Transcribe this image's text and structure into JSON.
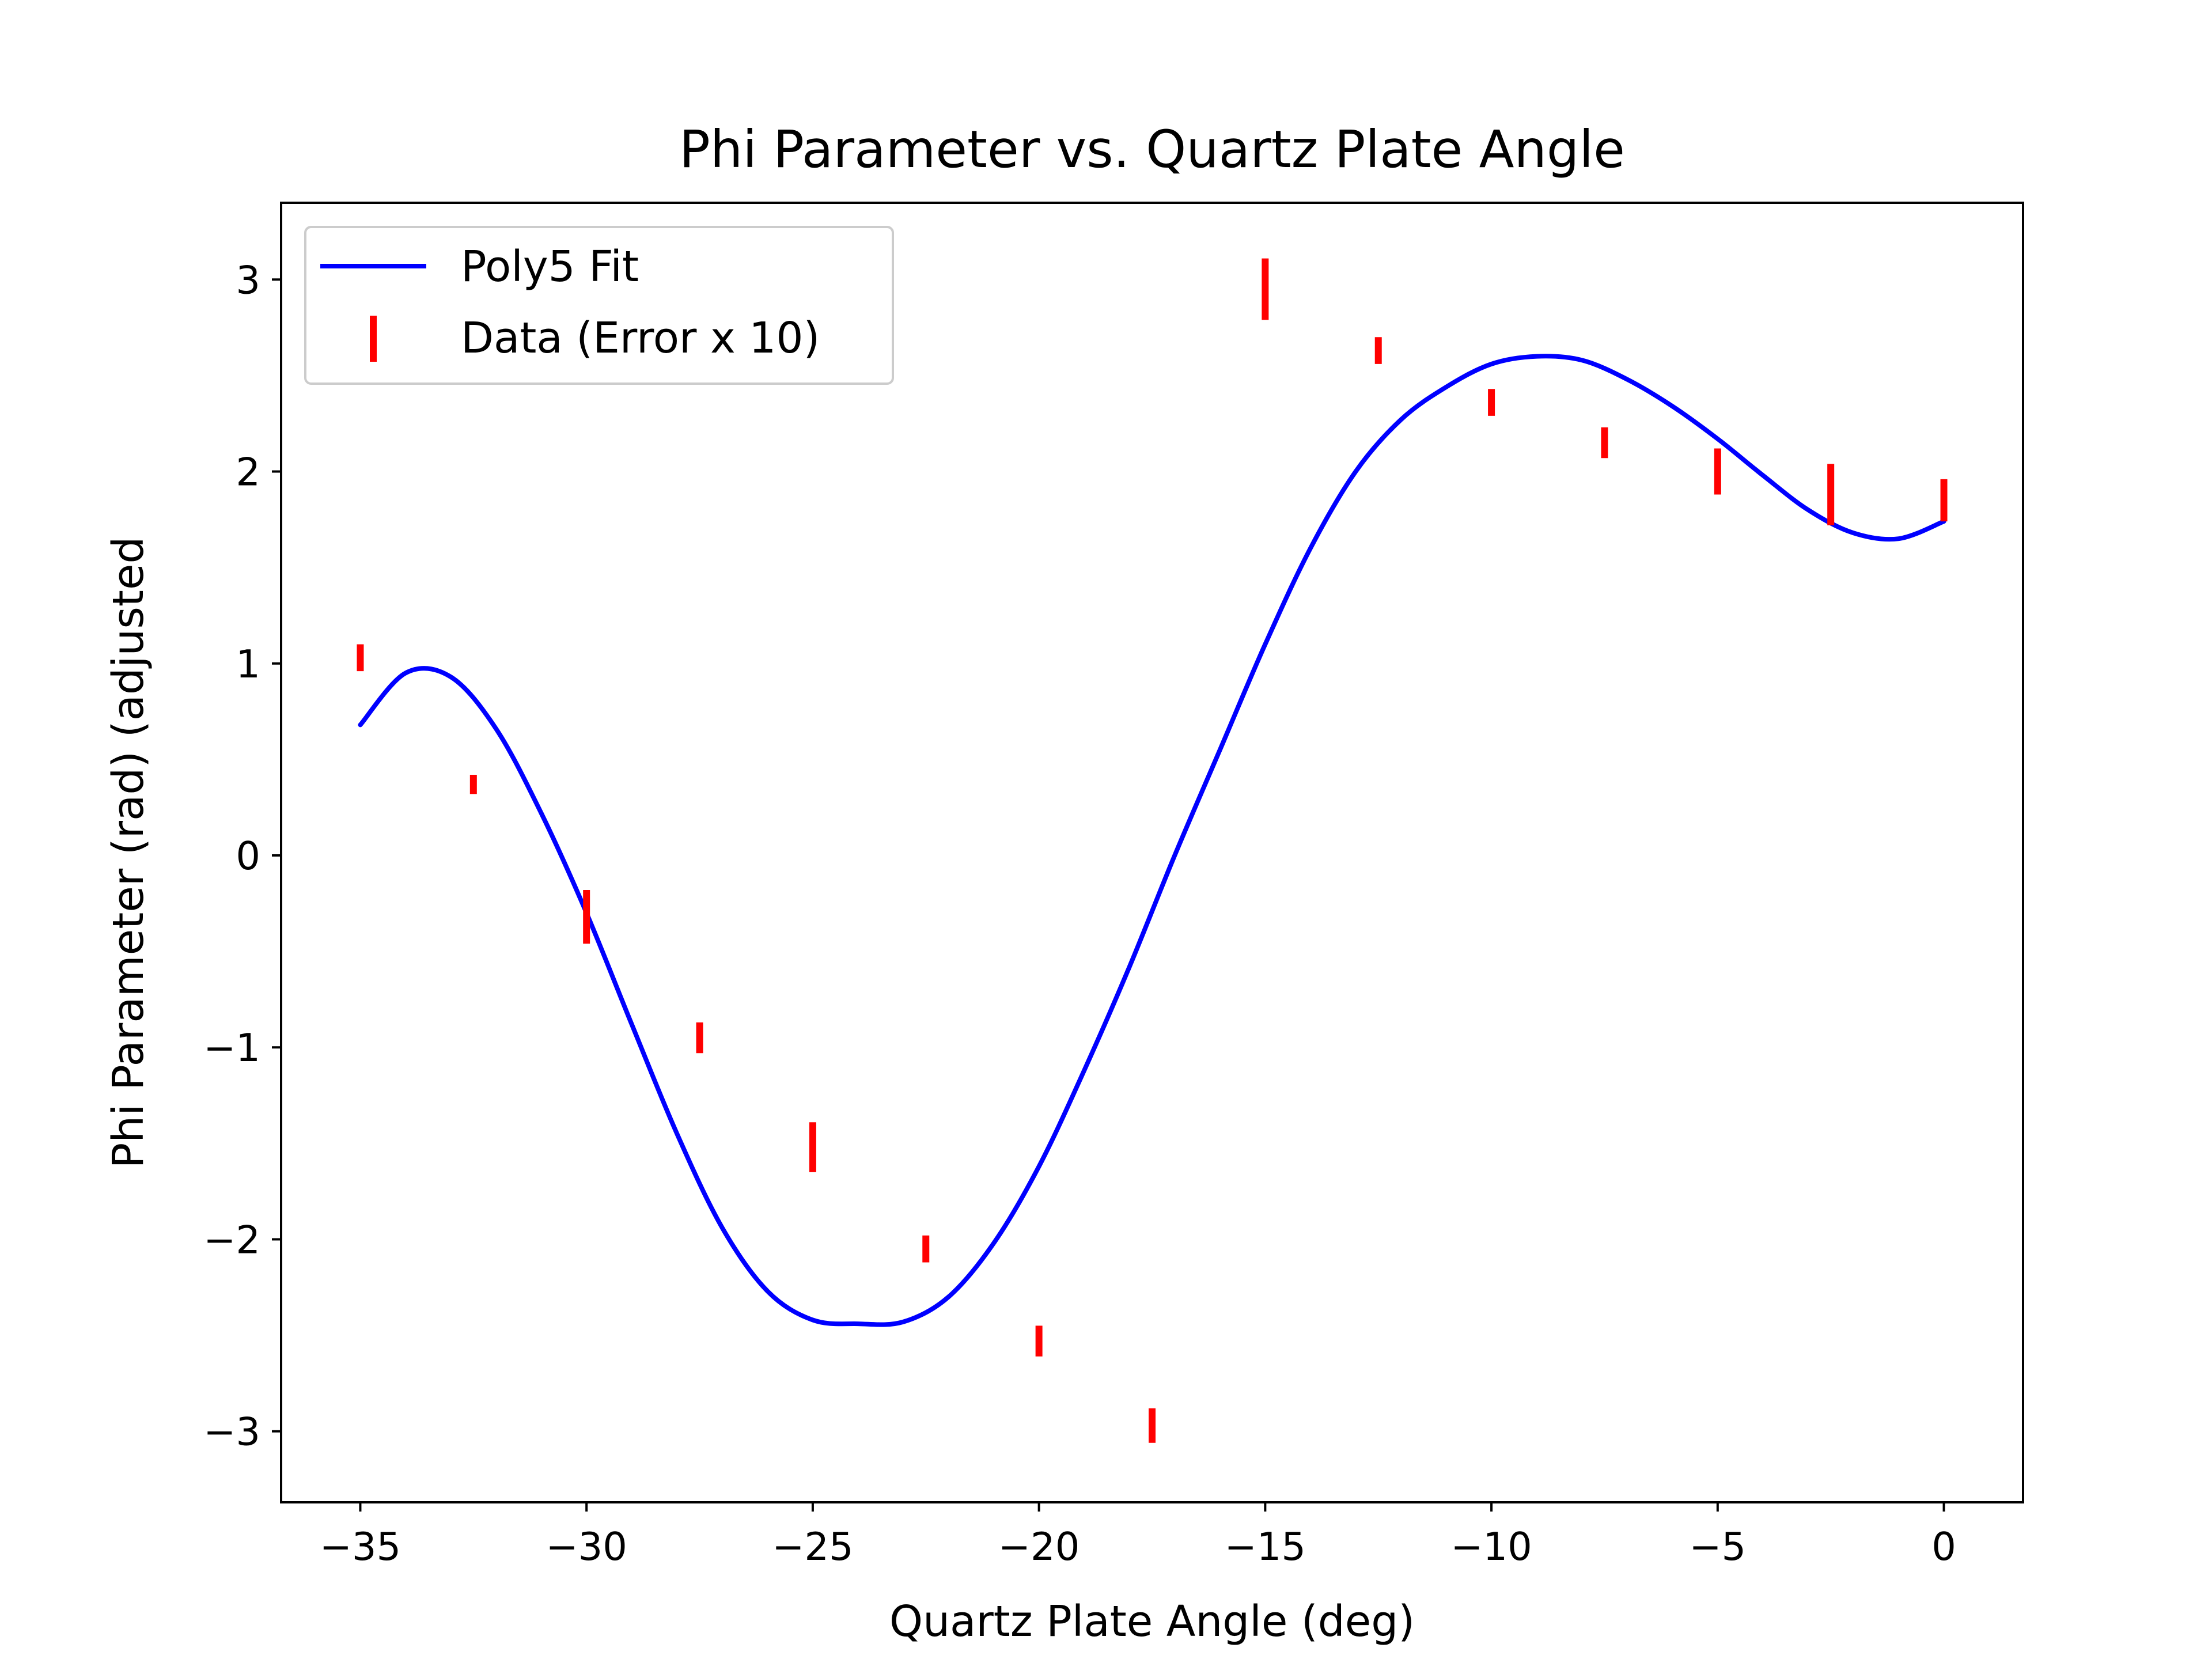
{
  "chart_data": {
    "type": "line",
    "title": "Phi Parameter vs. Quartz Plate Angle",
    "xlabel": "Quartz Plate Angle (deg)",
    "ylabel": "Phi Parameter (rad) (adjusted",
    "xlim": [
      -36.75,
      1.75
    ],
    "ylim": [
      -3.37,
      3.4
    ],
    "x_ticks": [
      -35,
      -30,
      -25,
      -20,
      -15,
      -10,
      -5,
      0
    ],
    "x_tick_labels": [
      "−35",
      "−30",
      "−25",
      "−20",
      "−15",
      "−10",
      "−5",
      "0"
    ],
    "y_ticks": [
      -3,
      -2,
      -1,
      0,
      1,
      2,
      3
    ],
    "y_tick_labels": [
      "−3",
      "−2",
      "−1",
      "0",
      "1",
      "2",
      "3"
    ],
    "grid": false,
    "legend_position": "top-left",
    "series": [
      {
        "name": "Poly5 Fit",
        "kind": "line",
        "color": "#0000ff",
        "x": [
          -35,
          -34,
          -33,
          -32,
          -31,
          -30,
          -29,
          -28,
          -27,
          -26,
          -25,
          -24,
          -23,
          -22,
          -21,
          -20,
          -19,
          -18,
          -17,
          -16,
          -15,
          -14,
          -13,
          -12,
          -11,
          -10,
          -9,
          -8,
          -7,
          -6,
          -5,
          -4,
          -3,
          -2,
          -1,
          0
        ],
        "y": [
          0.68,
          0.95,
          0.93,
          0.66,
          0.22,
          -0.3,
          -0.88,
          -1.45,
          -1.94,
          -2.27,
          -2.42,
          -2.44,
          -2.43,
          -2.3,
          -2.02,
          -1.62,
          -1.12,
          -0.58,
          0.0,
          0.55,
          1.1,
          1.6,
          2.0,
          2.27,
          2.44,
          2.56,
          2.6,
          2.58,
          2.48,
          2.34,
          2.17,
          1.98,
          1.8,
          1.68,
          1.65,
          1.74
        ]
      },
      {
        "name": "Data (Error x 10)",
        "kind": "errorbar",
        "color": "#ff0000",
        "x": [
          -35,
          -32.5,
          -30,
          -27.5,
          -25,
          -22.5,
          -20,
          -17.5,
          -15,
          -12.5,
          -10,
          -7.5,
          -5,
          -2.5,
          0
        ],
        "y": [
          1.03,
          0.37,
          -0.32,
          -0.95,
          -1.52,
          -2.05,
          -2.53,
          -2.97,
          2.95,
          2.63,
          2.36,
          2.15,
          2.0,
          1.88,
          1.85
        ],
        "yerr": [
          0.07,
          0.05,
          0.14,
          0.08,
          0.13,
          0.07,
          0.08,
          0.09,
          0.16,
          0.07,
          0.07,
          0.08,
          0.12,
          0.16,
          0.11
        ]
      }
    ]
  }
}
